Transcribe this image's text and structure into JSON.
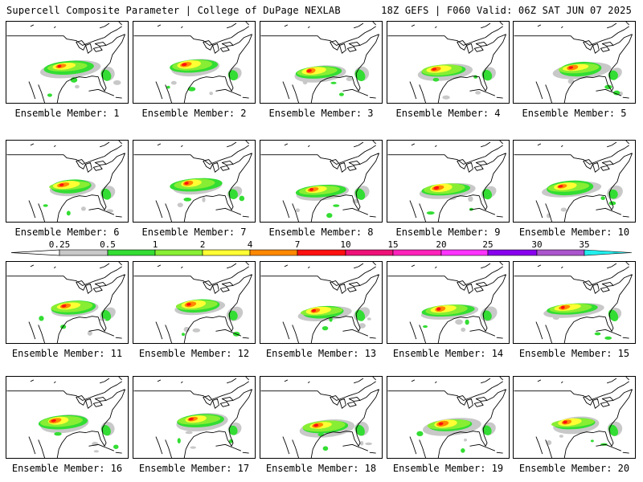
{
  "header": {
    "title": "Supercell Composite Parameter | College of DuPage NEXLAB",
    "run_info": "18Z GEFS | F060 Valid: 06Z SAT JUN 07 2025"
  },
  "panels": [
    {
      "label": "Ensemble Member: 1"
    },
    {
      "label": "Ensemble Member: 2"
    },
    {
      "label": "Ensemble Member: 3"
    },
    {
      "label": "Ensemble Member: 4"
    },
    {
      "label": "Ensemble Member: 5"
    },
    {
      "label": "Ensemble Member: 6"
    },
    {
      "label": "Ensemble Member: 7"
    },
    {
      "label": "Ensemble Member: 8"
    },
    {
      "label": "Ensemble Member: 9"
    },
    {
      "label": "Ensemble Member: 10"
    },
    {
      "label": "Ensemble Member: 11"
    },
    {
      "label": "Ensemble Member: 12"
    },
    {
      "label": "Ensemble Member: 13"
    },
    {
      "label": "Ensemble Member: 14"
    },
    {
      "label": "Ensemble Member: 15"
    },
    {
      "label": "Ensemble Member: 16"
    },
    {
      "label": "Ensemble Member: 17"
    },
    {
      "label": "Ensemble Member: 18"
    },
    {
      "label": "Ensemble Member: 19"
    },
    {
      "label": "Ensemble Member: 20"
    }
  ],
  "colorbar": {
    "labels": [
      "0.25",
      "0.5",
      "1",
      "2",
      "4",
      "7",
      "10",
      "15",
      "20",
      "25",
      "30",
      "35"
    ],
    "colors": [
      "#c8c8c8",
      "#33dd33",
      "#88ee33",
      "#ffff33",
      "#ff8800",
      "#ff1111",
      "#ee1177",
      "#ff22bb",
      "#ff33ff",
      "#8800ee",
      "#aa55cc",
      "#22eeee"
    ]
  }
}
